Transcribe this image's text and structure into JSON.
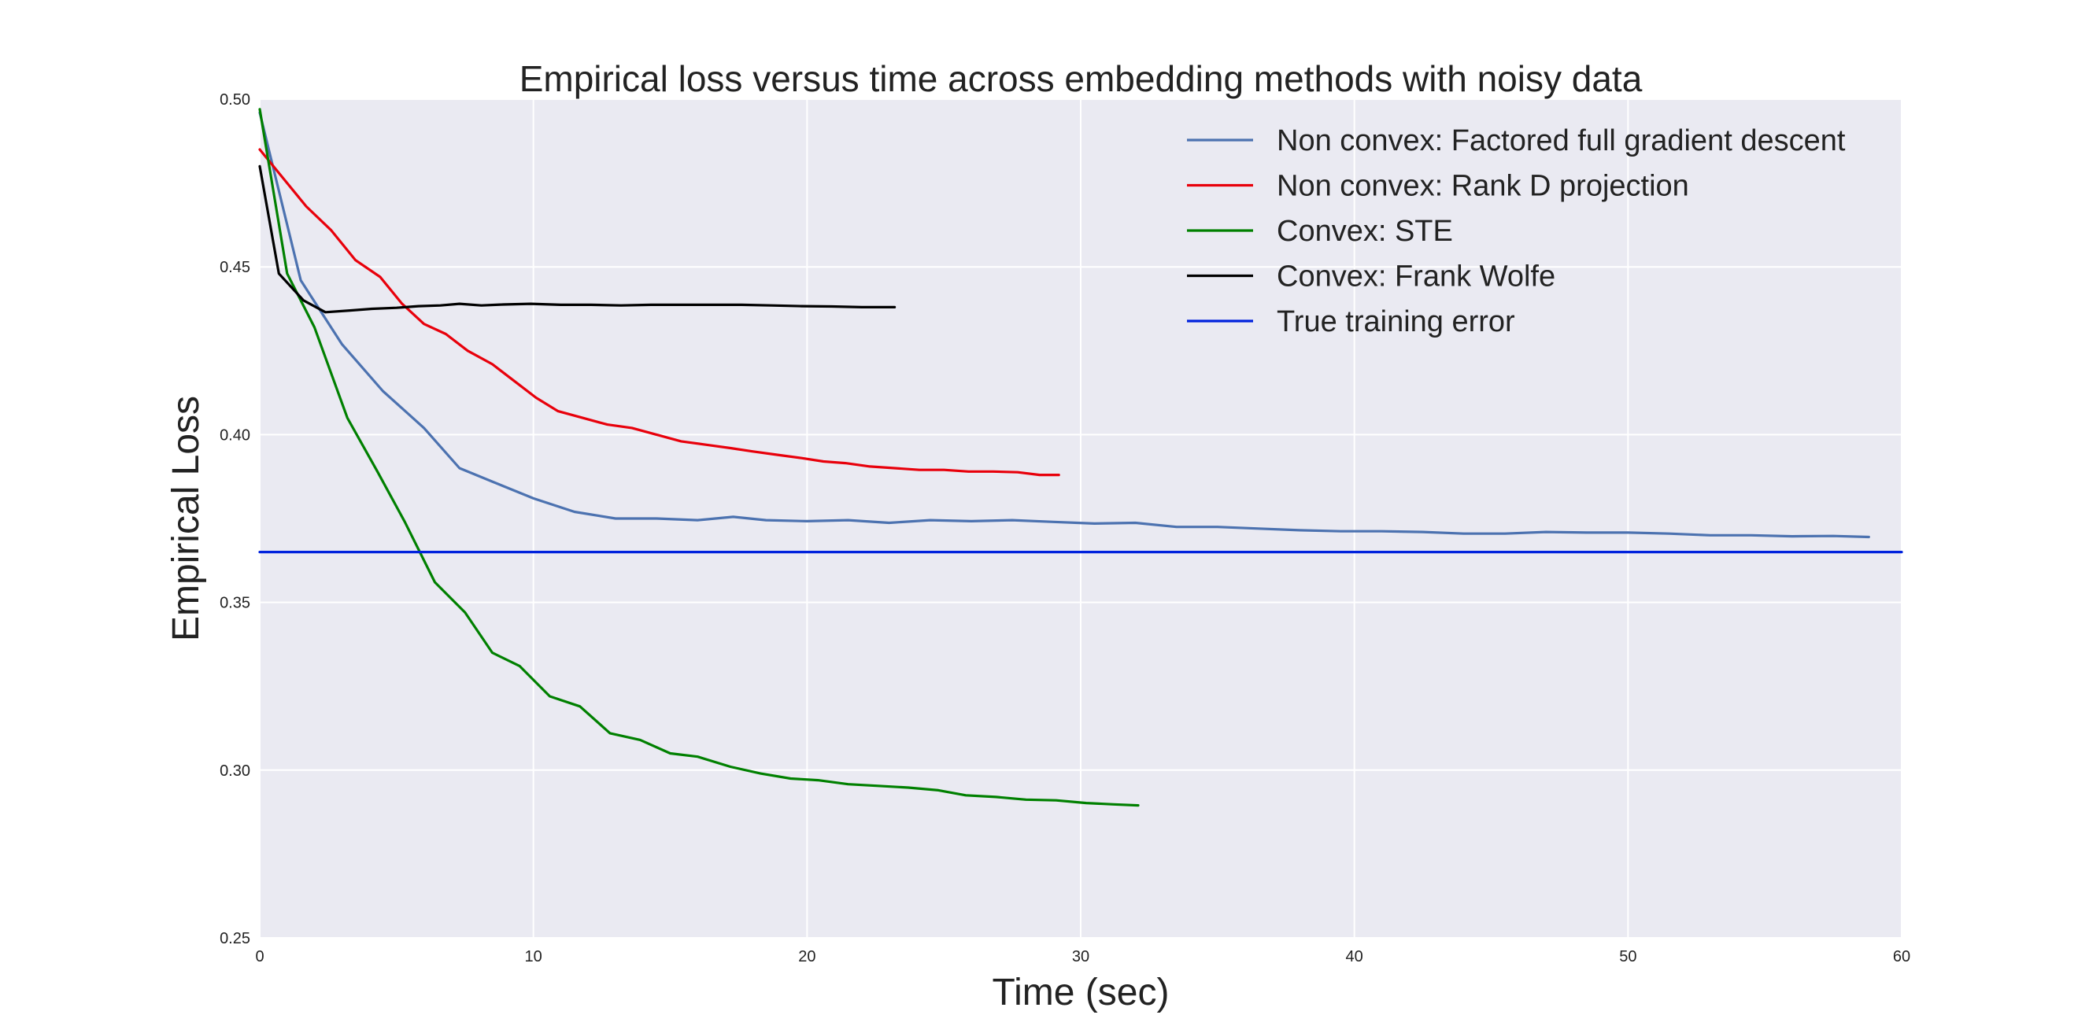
{
  "chart_data": {
    "type": "line",
    "title": "Empirical loss versus time across embedding methods with noisy data",
    "xlabel": "Time (sec)",
    "ylabel": "Empirical Loss",
    "xlim": [
      0,
      60
    ],
    "ylim": [
      0.25,
      0.5
    ],
    "xticks": [
      0,
      10,
      20,
      30,
      40,
      50,
      60
    ],
    "xtick_labels": [
      "0",
      "10",
      "20",
      "30",
      "40",
      "50",
      "60"
    ],
    "yticks": [
      0.25,
      0.3,
      0.35,
      0.4,
      0.45,
      0.5
    ],
    "ytick_labels": [
      "0.25",
      "0.30",
      "0.35",
      "0.40",
      "0.45",
      "0.50"
    ],
    "grid": true,
    "legend_position": "top-right",
    "colors": {
      "plot_background": "#EAEAF2",
      "grid": "#FFFFFF"
    },
    "series": [
      {
        "name": "Non convex: Factored full gradient descent",
        "color": "#4C72B0",
        "x": [
          0,
          1.5,
          3,
          4.5,
          6,
          7.3,
          8.5,
          10,
          11.5,
          13,
          14.5,
          16,
          17.3,
          18.5,
          20,
          21.5,
          23,
          24.5,
          26,
          27.5,
          29,
          30.5,
          32,
          33.5,
          35,
          36.5,
          38,
          39.5,
          41,
          42.5,
          44,
          45.5,
          47,
          48.5,
          50,
          51.5,
          53,
          54.5,
          56,
          57.5,
          58.8
        ],
        "y": [
          0.496,
          0.446,
          0.427,
          0.413,
          0.402,
          0.39,
          0.386,
          0.381,
          0.377,
          0.375,
          0.375,
          0.3745,
          0.3755,
          0.3745,
          0.3742,
          0.3745,
          0.3737,
          0.3745,
          0.3742,
          0.3745,
          0.374,
          0.3735,
          0.3737,
          0.3725,
          0.3725,
          0.372,
          0.3715,
          0.3712,
          0.3712,
          0.371,
          0.3705,
          0.3705,
          0.371,
          0.3708,
          0.3708,
          0.3705,
          0.37,
          0.37,
          0.3697,
          0.3698,
          0.3695
        ]
      },
      {
        "name": "Non convex: Rank D projection",
        "color": "#E8000B",
        "x": [
          0,
          0.8,
          1.7,
          2.6,
          3.5,
          4.4,
          5.2,
          6.0,
          6.8,
          7.6,
          8.5,
          9.3,
          10.1,
          10.9,
          11.8,
          12.7,
          13.6,
          14.5,
          15.4,
          16.3,
          17.2,
          18.0,
          18.9,
          19.8,
          20.6,
          21.4,
          22.3,
          23.2,
          24.1,
          25.0,
          25.9,
          26.8,
          27.7,
          28.5,
          29.2
        ],
        "y": [
          0.485,
          0.477,
          0.468,
          0.461,
          0.452,
          0.447,
          0.439,
          0.433,
          0.43,
          0.425,
          0.421,
          0.416,
          0.411,
          0.407,
          0.405,
          0.403,
          0.402,
          0.4,
          0.398,
          0.397,
          0.396,
          0.395,
          0.394,
          0.393,
          0.392,
          0.3915,
          0.3905,
          0.39,
          0.3895,
          0.3895,
          0.389,
          0.389,
          0.3888,
          0.388,
          0.388
        ]
      },
      {
        "name": "Convex: STE",
        "color": "#008000",
        "x": [
          0,
          1.0,
          2.0,
          3.2,
          4.3,
          5.3,
          6.4,
          7.5,
          8.5,
          9.5,
          10.6,
          11.7,
          12.8,
          13.9,
          15.0,
          16.0,
          17.2,
          18.3,
          19.4,
          20.4,
          21.5,
          22.6,
          23.7,
          24.8,
          25.8,
          26.9,
          28.0,
          29.1,
          30.2,
          31.2,
          32.1
        ],
        "y": [
          0.497,
          0.448,
          0.432,
          0.405,
          0.389,
          0.374,
          0.356,
          0.347,
          0.335,
          0.331,
          0.322,
          0.319,
          0.311,
          0.309,
          0.305,
          0.304,
          0.301,
          0.299,
          0.2975,
          0.297,
          0.2958,
          0.2953,
          0.2948,
          0.294,
          0.2925,
          0.292,
          0.2912,
          0.291,
          0.2902,
          0.2898,
          0.2895
        ]
      },
      {
        "name": "Convex: Frank Wolfe",
        "color": "#000000",
        "x": [
          0,
          0.7,
          1.6,
          2.4,
          3.3,
          4.1,
          5.0,
          5.8,
          6.6,
          7.3,
          8.1,
          8.9,
          9.9,
          11.0,
          12.1,
          13.2,
          14.3,
          15.4,
          16.5,
          17.6,
          18.7,
          19.8,
          20.9,
          22.0,
          23.2
        ],
        "y": [
          0.48,
          0.448,
          0.44,
          0.4365,
          0.437,
          0.4375,
          0.4378,
          0.4383,
          0.4385,
          0.439,
          0.4385,
          0.4388,
          0.439,
          0.4387,
          0.4387,
          0.4385,
          0.4387,
          0.4387,
          0.4387,
          0.4387,
          0.4385,
          0.4383,
          0.4382,
          0.438,
          0.438
        ]
      },
      {
        "name": "True training error",
        "color": "#0022DD",
        "x": [
          0,
          60
        ],
        "y": [
          0.365,
          0.365
        ]
      }
    ]
  }
}
